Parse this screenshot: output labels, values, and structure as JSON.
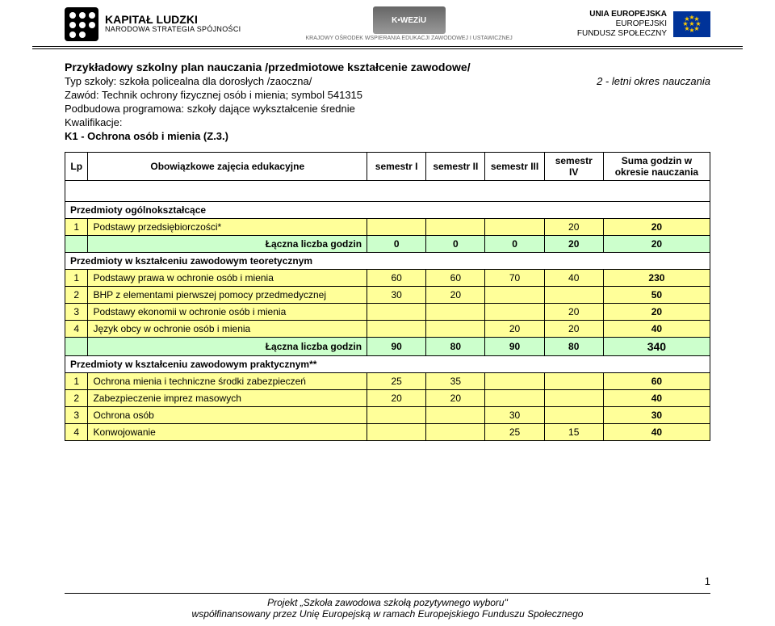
{
  "colors": {
    "yellow_row": "#ffff99",
    "green_row": "#ccffcc",
    "border": "#000000",
    "background": "#ffffff",
    "text": "#000000"
  },
  "header": {
    "left_line1": "KAPITAŁ LUDZKI",
    "left_line2": "NARODOWA STRATEGIA SPÓJNOŚCI",
    "center_label": "K•WEZiU",
    "center_sub": "KRAJOWY OŚRODEK WSPIERANIA EDUKACJI ZAWODOWEJ I USTAWICZNEJ",
    "right_line1": "UNIA EUROPEJSKA",
    "right_line2": "EUROPEJSKI",
    "right_line3": "FUNDUSZ SPOŁECZNY"
  },
  "doc": {
    "title": "Przykładowy szkolny plan nauczania /przedmiotowe kształcenie zawodowe/",
    "line_school": "Typ szkoły: szkoła policealna dla dorosłych /zaoczna/",
    "line_duration": "2 - letni okres nauczania",
    "line_profession": "Zawód: Technik ochrony fizycznej osób i mienia; symbol 541315",
    "line_base": "Podbudowa programowa: szkoły dające wykształcenie średnie",
    "line_qual_h": "Kwalifikacje:",
    "line_qual": "K1 - Ochrona osób i mienia (Z.3.)"
  },
  "table": {
    "head": {
      "lp": "Lp",
      "subject": "Obowiązkowe zajęcia edukacyjne",
      "sem1": "semestr I",
      "sem2": "semestr II",
      "sem3": "semestr III",
      "sem4": "semestr IV",
      "sum": "Suma godzin w  okresie nauczania"
    },
    "section1": "Przedmioty ogólnokształcące",
    "r1": {
      "lp": "1",
      "subj": "Podstawy przedsiębiorczości*",
      "s1": "",
      "s2": "",
      "s3": "",
      "s4": "20",
      "sum": "20"
    },
    "total1": {
      "label": "Łączna liczba godzin",
      "s1": "0",
      "s2": "0",
      "s3": "0",
      "s4": "20",
      "sum": "20"
    },
    "section2": "Przedmioty w kształceniu zawodowym teoretycznym",
    "r2": {
      "lp": "1",
      "subj": "Podstawy prawa w ochronie osób i mienia",
      "s1": "60",
      "s2": "60",
      "s3": "70",
      "s4": "40",
      "sum": "230"
    },
    "r3": {
      "lp": "2",
      "subj": "BHP z elementami pierwszej pomocy przedmedycznej",
      "s1": "30",
      "s2": "20",
      "s3": "",
      "s4": "",
      "sum": "50"
    },
    "r4": {
      "lp": "3",
      "subj": "Podstawy ekonomii w ochronie osób i mienia",
      "s1": "",
      "s2": "",
      "s3": "",
      "s4": "20",
      "sum": "20"
    },
    "r5": {
      "lp": "4",
      "subj": "Język obcy w ochronie osób i mienia",
      "s1": "",
      "s2": "",
      "s3": "20",
      "s4": "20",
      "sum": "40"
    },
    "total2": {
      "label": "Łączna liczba godzin",
      "s1": "90",
      "s2": "80",
      "s3": "90",
      "s4": "80",
      "sum": "340"
    },
    "section3": "Przedmioty w kształceniu zawodowym praktycznym**",
    "r6": {
      "lp": "1",
      "subj": "Ochrona mienia i techniczne środki zabezpieczeń",
      "s1": "25",
      "s2": "35",
      "s3": "",
      "s4": "",
      "sum": "60"
    },
    "r7": {
      "lp": "2",
      "subj": "Zabezpieczenie imprez masowych",
      "s1": "20",
      "s2": "20",
      "s3": "",
      "s4": "",
      "sum": "40"
    },
    "r8": {
      "lp": "3",
      "subj": "Ochrona osób",
      "s1": "",
      "s2": "",
      "s3": "30",
      "s4": "",
      "sum": "30"
    },
    "r9": {
      "lp": "4",
      "subj": "Konwojowanie",
      "s1": "",
      "s2": "",
      "s3": "25",
      "s4": "15",
      "sum": "40"
    }
  },
  "footer": {
    "line1": "Projekt „Szkoła zawodowa szkołą pozytywnego wyboru\"",
    "line2": "współfinansowany przez Unię Europejską w ramach Europejskiego Funduszu Społecznego",
    "page": "1"
  }
}
